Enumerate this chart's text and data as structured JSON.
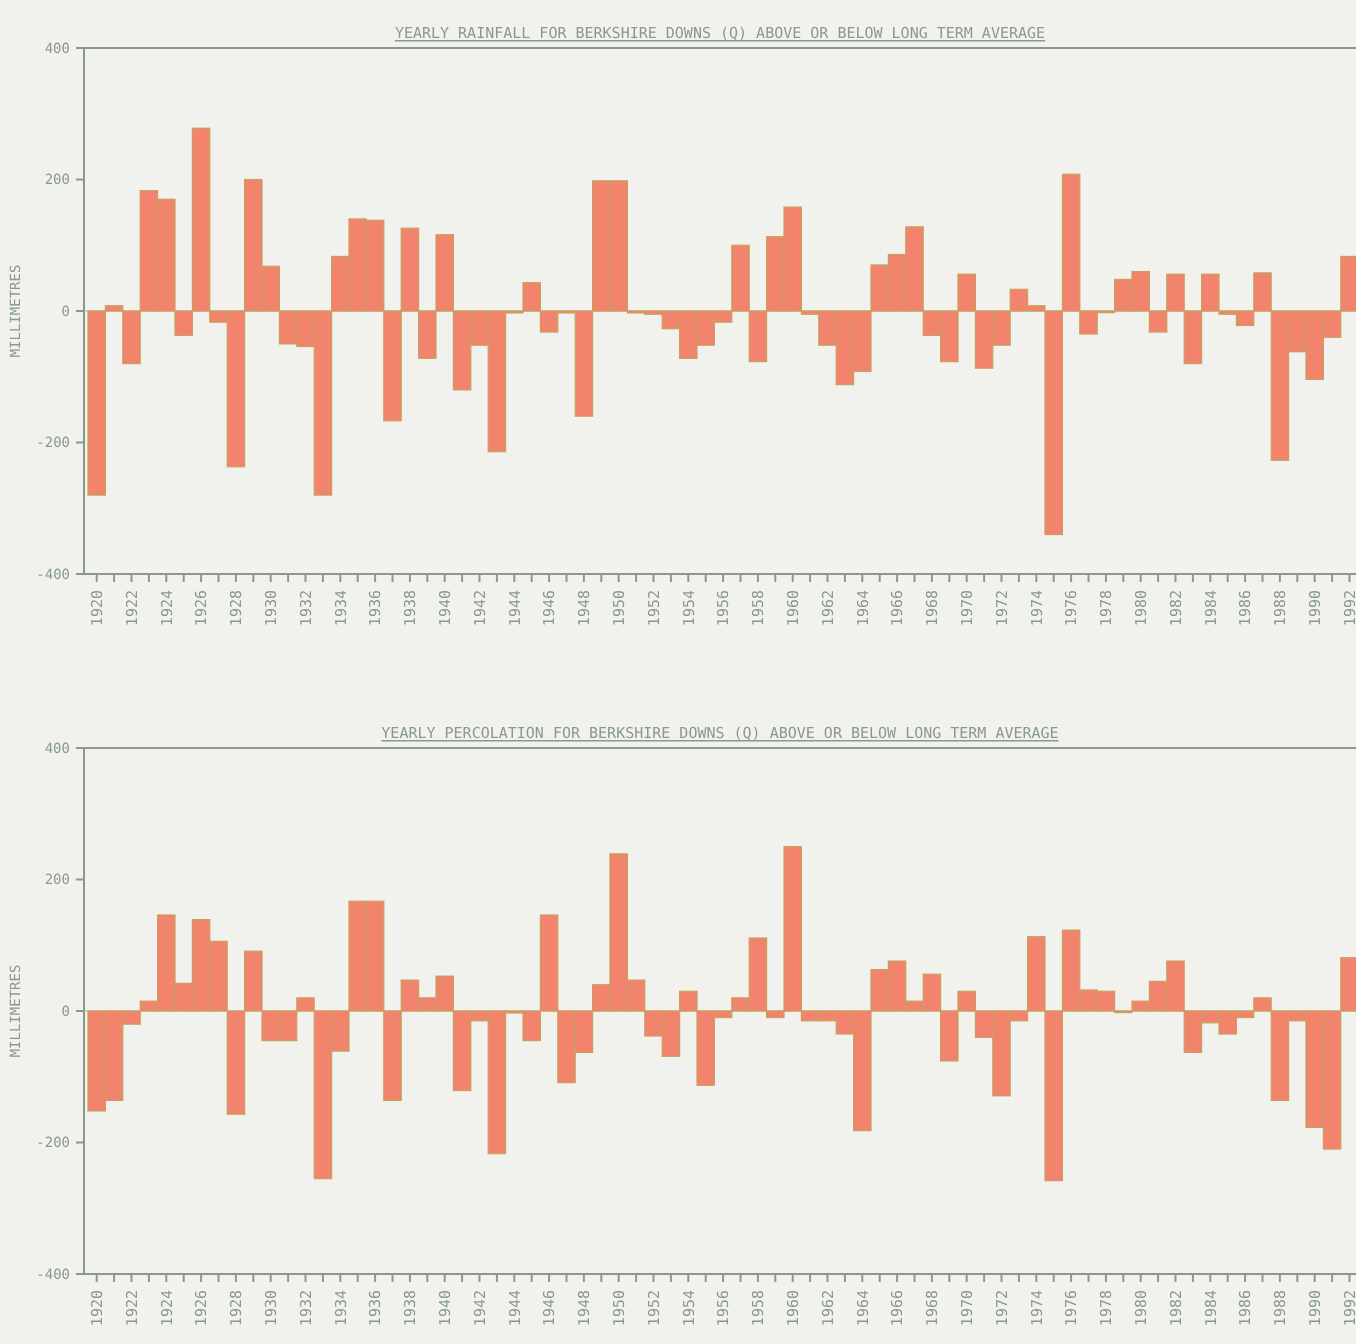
{
  "chart_data": [
    {
      "type": "bar",
      "title": "YEARLY RAINFALL FOR BERKSHIRE DOWNS (Q) ABOVE OR BELOW LONG TERM AVERAGE",
      "ylabel": "MILLIMETRES",
      "categories": [
        "1920",
        null,
        "1922",
        null,
        "1924",
        null,
        "1926",
        null,
        "1928",
        null,
        "1930",
        null,
        "1932",
        null,
        "1934",
        null,
        "1936",
        null,
        "1938",
        null,
        "1940",
        null,
        "1942",
        null,
        "1944",
        null,
        "1946",
        null,
        "1948",
        null,
        "1950",
        null,
        "1952",
        null,
        "1954",
        null,
        "1956",
        null,
        "1958",
        null,
        "1960",
        null,
        "1962",
        null,
        "1964",
        null,
        "1966",
        null,
        "1968",
        null,
        "1970",
        null,
        "1972",
        null,
        "1974",
        null,
        "1976",
        null,
        "1978",
        null,
        "1980",
        null,
        "1982",
        null,
        "1984",
        null,
        "1986",
        null,
        "1988",
        null,
        "1990",
        null,
        "1992"
      ],
      "values": [
        -280,
        8,
        -80,
        183,
        170,
        -37,
        278,
        -17,
        -237,
        200,
        68,
        -50,
        -54,
        -280,
        83,
        140,
        138,
        -167,
        126,
        -72,
        116,
        -120,
        -52,
        -214,
        -3,
        43,
        -32,
        -3,
        -160,
        198,
        198,
        -3,
        -5,
        -27,
        -72,
        -52,
        -17,
        100,
        -77,
        113,
        158,
        -5,
        -52,
        -112,
        -92,
        70,
        86,
        128,
        -37,
        -77,
        56,
        -87,
        -52,
        33,
        8,
        -340,
        208,
        -35,
        0,
        48,
        60,
        -32,
        56,
        -80,
        56,
        -5,
        -22,
        58,
        -227,
        -62,
        -104,
        -40,
        83
      ],
      "color": "#f2836c",
      "ylim": [
        -400,
        400
      ],
      "yticks": [
        -400,
        -200,
        0,
        200,
        400
      ],
      "ref_lines": [
        {
          "axis": "y",
          "value": 0,
          "color": "#c9a080"
        }
      ]
    },
    {
      "type": "bar",
      "title": "YEARLY PERCOLATION FOR BERKSHIRE DOWNS (Q) ABOVE OR BELOW LONG TERM AVERAGE",
      "ylabel": "MILLIMETRES",
      "categories": [
        "1920",
        null,
        "1922",
        null,
        "1924",
        null,
        "1926",
        null,
        "1928",
        null,
        "1930",
        null,
        "1932",
        null,
        "1934",
        null,
        "1936",
        null,
        "1938",
        null,
        "1940",
        null,
        "1942",
        null,
        "1944",
        null,
        "1946",
        null,
        "1948",
        null,
        "1950",
        null,
        "1952",
        null,
        "1954",
        null,
        "1956",
        null,
        "1958",
        null,
        "1960",
        null,
        "1962",
        null,
        "1964",
        null,
        "1966",
        null,
        "1968",
        null,
        "1970",
        null,
        "1972",
        null,
        "1974",
        null,
        "1976",
        null,
        "1978",
        null,
        "1980",
        null,
        "1982",
        null,
        "1984",
        null,
        "1986",
        null,
        "1988",
        null,
        "1990",
        null,
        "1992"
      ],
      "values": [
        -152,
        -136,
        -20,
        15,
        146,
        42,
        139,
        106,
        -157,
        91,
        -45,
        -45,
        20,
        -255,
        -61,
        167,
        167,
        -136,
        47,
        20,
        53,
        -121,
        -15,
        -217,
        -3,
        -45,
        146,
        -109,
        -63,
        40,
        239,
        47,
        -38,
        -69,
        30,
        -113,
        -10,
        20,
        111,
        -10,
        250,
        -15,
        -15,
        -35,
        -182,
        63,
        76,
        15,
        56,
        -76,
        30,
        -40,
        -129,
        -15,
        113,
        -258,
        123,
        32,
        30,
        0,
        15,
        45,
        76,
        -63,
        -18,
        -35,
        -10,
        20,
        -136,
        -15,
        -177,
        -210,
        81
      ],
      "color": "#f2836c",
      "ylim": [
        -400,
        400
      ],
      "yticks": [
        -400,
        -200,
        0,
        200,
        400
      ],
      "ref_lines": [
        {
          "axis": "y",
          "value": 0,
          "color": "#c9a080"
        }
      ]
    }
  ]
}
